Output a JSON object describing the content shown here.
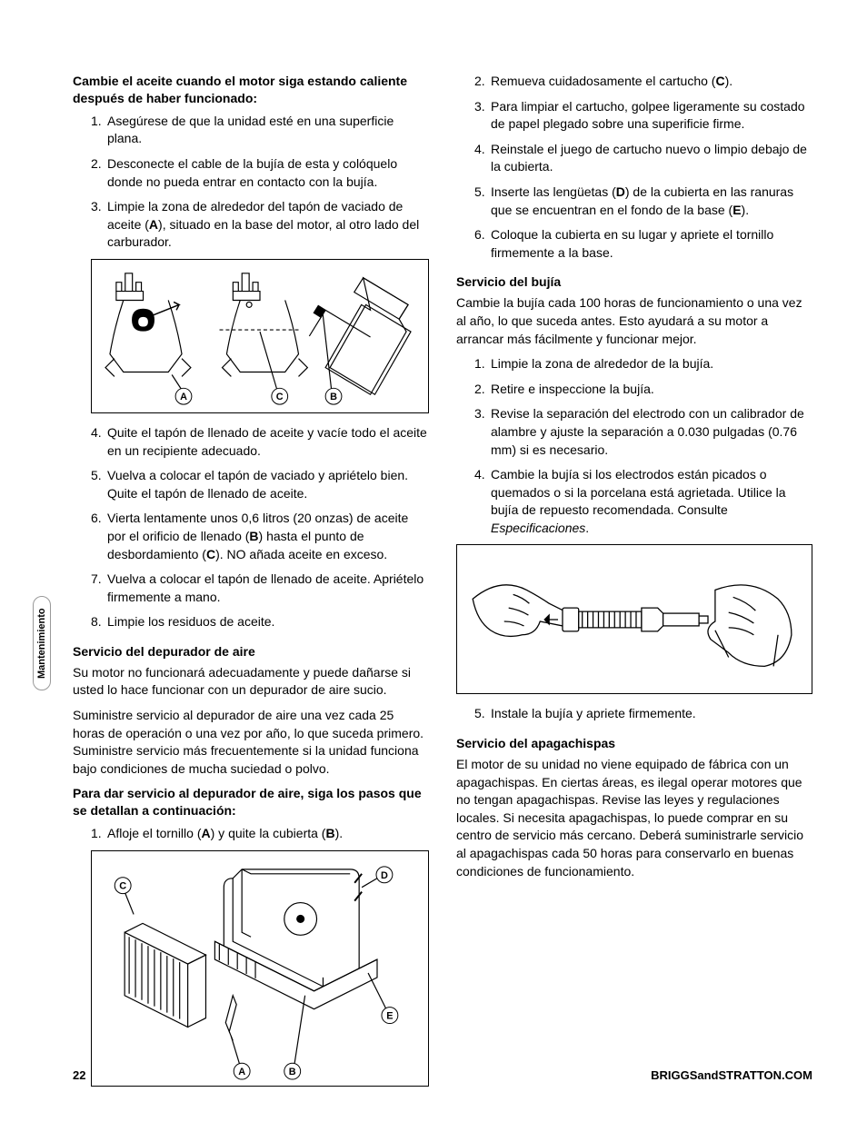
{
  "sidebar_label": "Mantenimiento",
  "footer": {
    "page": "22",
    "site": "BRIGGSandSTRATTON.COM"
  },
  "left": {
    "lead1": "Cambie el aceite cuando el motor siga estando caliente después de haber funcionado:",
    "list1": [
      "Asegúrese de que la unidad esté en una superficie plana.",
      "Desconecte el cable de la bujía de esta y colóquelo donde no pueda entrar en contacto con la bujía.",
      "Limpie la zona de alrededor del tapón de vaciado de aceite (<b>A</b>), situado en la base del motor, al otro lado del carburador."
    ],
    "fig1_labels": [
      "A",
      "C",
      "B"
    ],
    "list2": [
      "Quite el tapón de llenado de aceite y vacíe todo el aceite en un recipiente adecuado.",
      "Vuelva a colocar el tapón de vaciado y apriételo bien. Quite el tapón de llenado de aceite.",
      "Vierta lentamente unos 0,6 litros (20 onzas) de aceite por el orificio de llenado (<b>B</b>) hasta el punto de desbordamiento (<b>C</b>). NO añada aceite en exceso.",
      "Vuelva a colocar el tapón de llenado de aceite. Apriételo firmemente a mano.",
      "Limpie los residuos de aceite."
    ],
    "head2": "Servicio del depurador de aire",
    "body2a": "Su motor no funcionará adecuadamente y puede dañarse si usted lo hace funcionar con un depurador de aire sucio.",
    "body2b": "Suministre servicio al depurador de aire una vez cada 25 horas de operación o una vez por año, lo que suceda primero. Suministre servicio más frecuentemente si la unidad funciona bajo condiciones de mucha suciedad o polvo.",
    "lead2": "Para dar servicio al depurador de aire, siga los pasos que se detallan a continuación:",
    "list3": [
      "Afloje el tornillo (<b>A</b>) y quite la cubierta (<b>B</b>)."
    ],
    "fig2_labels": {
      "C": "C",
      "D": "D",
      "A": "A",
      "B": "B",
      "E": "E"
    }
  },
  "right": {
    "list1": [
      "Remueva cuidadosamente el cartucho (<b>C</b>).",
      "Para limpiar el cartucho, golpee ligeramente su costado de papel plegado sobre una superificie firme.",
      "Reinstale el juego de cartucho nuevo o limpio debajo de la cubierta.",
      "Inserte las lengüetas (<b>D</b>) de la cubierta en las ranuras que se encuentran en el fondo de la base (<b>E</b>).",
      "Coloque la cubierta en su lugar y apriete el tornillo firmemente a la base."
    ],
    "head1": "Servicio del bujía",
    "body1": "Cambie la bujía cada 100 horas de funcionamiento o una vez al año, lo que suceda antes. Esto ayudará a su motor a arrancar más fácilmente y funcionar mejor.",
    "list2": [
      "Limpie la zona de alrededor de la bujía.",
      "Retire e inspeccione la bujía.",
      "Revise la separación del electrodo con un calibrador de alambre y ajuste la separación a 0.030 pulgadas (0.76 mm) si es necesario.",
      "Cambie la bujía si los electrodos están picados o quemados o si la porcelana está agrietada. Utilice la bujía de repuesto recomendada. Consulte <i>Especificaciones</i>."
    ],
    "list3": [
      "Instale la bujía y apriete firmemente."
    ],
    "head2": "Servicio del apagachispas",
    "body2": "El motor de su unidad no viene equipado de fábrica con un apagachispas. En ciertas áreas, es ilegal operar motores que no tengan apagachispas. Revise las leyes y regulaciones locales. Si necesita apagachispas, lo puede comprar en su centro de servicio más cercano. Deberá suministrarle servicio al apagachispas cada 50 horas para conservarlo en buenas condiciones de funcionamiento."
  }
}
